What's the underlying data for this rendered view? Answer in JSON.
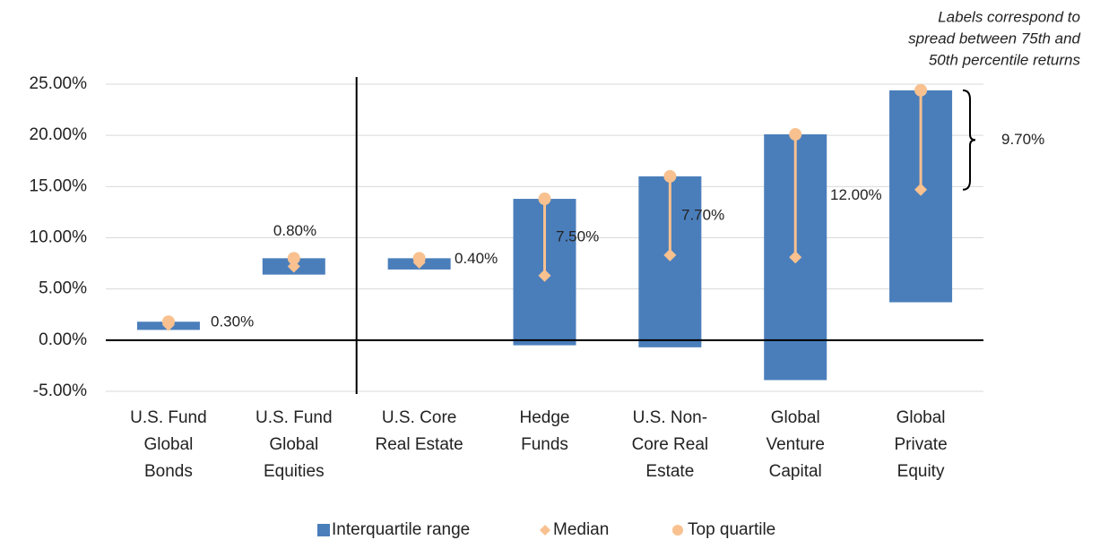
{
  "chart_data": {
    "type": "floating_bar",
    "annotation": [
      "Labels correspond to",
      "spread between 75th and",
      "50th percentile returns"
    ],
    "categories": [
      [
        "U.S. Fund",
        "Global",
        "Bonds"
      ],
      [
        "U.S. Fund",
        "Global",
        "Equities"
      ],
      [
        "U.S. Core",
        "Real Estate"
      ],
      [
        "Hedge",
        "Funds"
      ],
      [
        "U.S. Non-",
        "Core Real",
        "Estate"
      ],
      [
        "Global",
        "Venture",
        "Capital"
      ],
      [
        "Global",
        "Private",
        "Equity"
      ]
    ],
    "series": [
      {
        "name": "Interquartile range",
        "color": "#4a7ebb",
        "low": [
          1.0,
          6.4,
          6.9,
          -0.5,
          -0.7,
          -3.9,
          3.7
        ],
        "high": [
          1.8,
          8.0,
          8.0,
          13.8,
          16.0,
          20.1,
          24.4
        ]
      },
      {
        "name": "Median",
        "color": "#f8c18f",
        "values": [
          1.5,
          7.2,
          7.6,
          6.3,
          8.3,
          8.1,
          14.7
        ]
      },
      {
        "name": "Top quartile",
        "color": "#f8c18f",
        "values": [
          1.8,
          8.0,
          8.0,
          13.8,
          16.0,
          20.1,
          24.4
        ]
      }
    ],
    "spreads": {
      "values": [
        0.3,
        0.8,
        0.4,
        7.5,
        7.7,
        12.0,
        9.7
      ],
      "value_labels": [
        "0.30%",
        "0.80%",
        "0.40%",
        "7.50%",
        "7.70%",
        "12.00%",
        "9.70%"
      ]
    },
    "ylim": [
      -5,
      25
    ],
    "yticks": [
      {
        "value": -5,
        "label": "-5.00%"
      },
      {
        "value": 0,
        "label": "0.00%"
      },
      {
        "value": 5,
        "label": "5.00%"
      },
      {
        "value": 10,
        "label": "10.00%"
      },
      {
        "value": 15,
        "label": "15.00%"
      },
      {
        "value": 20,
        "label": "20.00%"
      },
      {
        "value": 25,
        "label": "25.00%"
      }
    ],
    "grid": true
  }
}
